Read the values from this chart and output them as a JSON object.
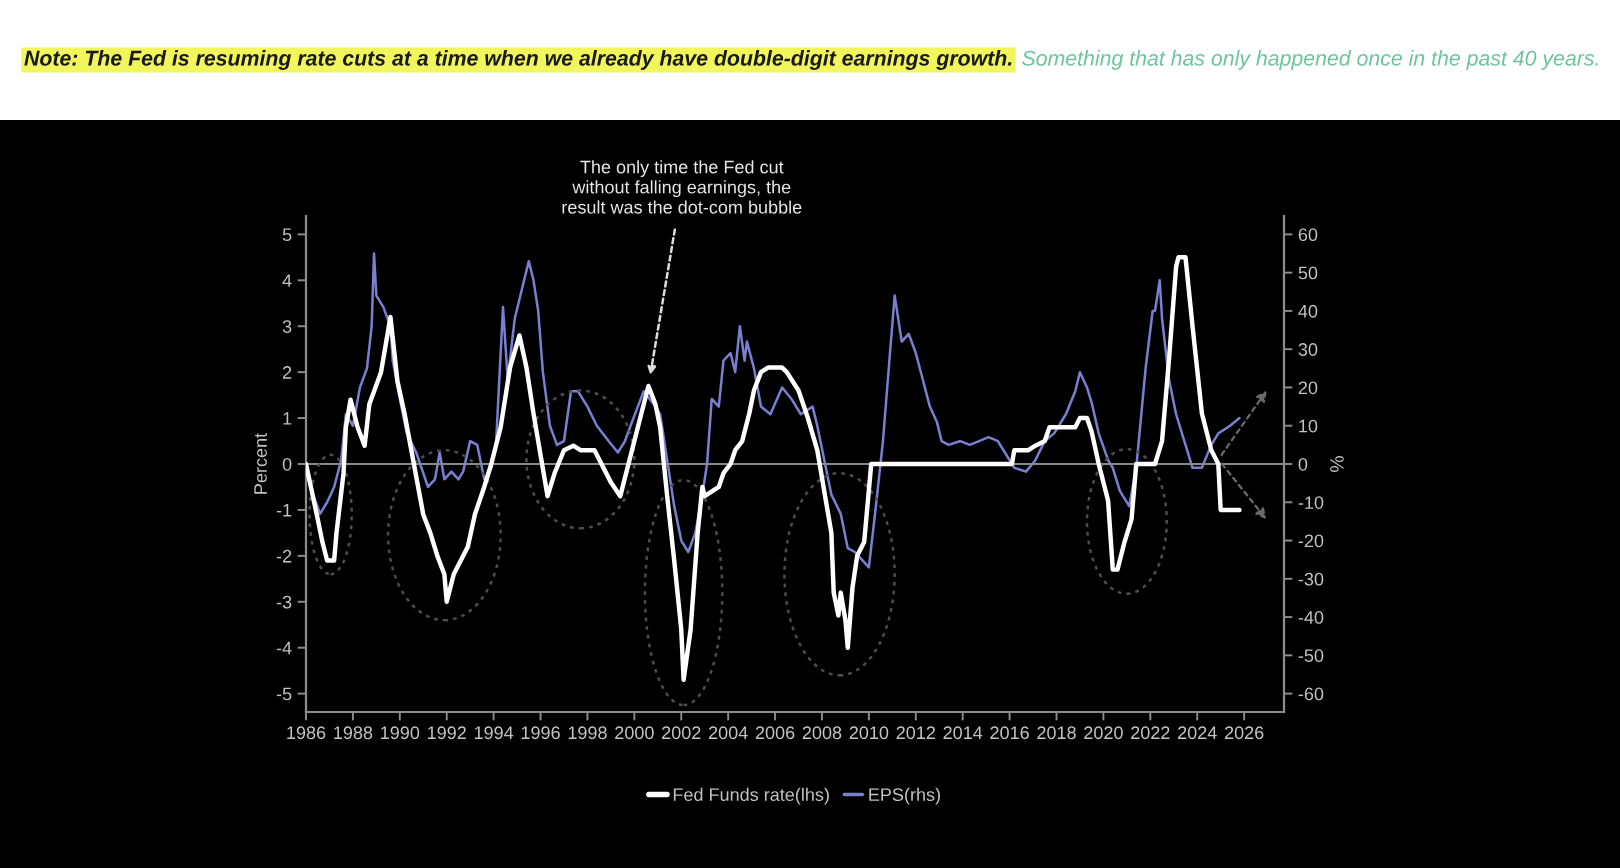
{
  "chart_data": {
    "type": "line",
    "title": "Note: The Fed is resuming rate cuts at a time when we already have double-digit earnings growth.",
    "subtitle": "Something that has only happened once in the past 40 years.",
    "ylabel": "Percent",
    "y2label": "%",
    "annotations": [
      {
        "text": "The only time the Fed cut\nwithout falling earnings, the\nresult was the dot-com bubble",
        "x": 2000.6,
        "y": 1.7
      }
    ],
    "series": [
      {
        "name": "Fed Funds rate(lhs)",
        "color": "#ffffff",
        "x": [
          1986.0,
          1986.5,
          1986.7,
          1986.9,
          1987.2,
          1987.3,
          1987.6,
          1987.7,
          1987.9,
          1988.2,
          1988.5,
          1988.7,
          1989.2,
          1989.5,
          1989.6,
          1989.9,
          1990.2,
          1990.6,
          1991.0,
          1991.3,
          1991.6,
          1991.9,
          1992.0,
          1992.3,
          1992.6,
          1992.9,
          1993.2,
          1993.6,
          1993.9,
          1994.3,
          1994.7,
          1995.1,
          1995.4,
          1995.7,
          1996.0,
          1996.3,
          1996.6,
          1997.0,
          1997.4,
          1997.7,
          1998.3,
          1998.6,
          1999.0,
          1999.4,
          1999.9,
          2000.3,
          2000.6,
          2000.9,
          2001.1,
          2001.4,
          2001.7,
          2002.0,
          2002.1,
          2002.4,
          2002.7,
          2002.9,
          2003.0,
          2003.6,
          2003.8,
          2004.1,
          2004.3,
          2004.6,
          2004.9,
          2005.1,
          2005.4,
          2005.7,
          2006.3,
          2006.5,
          2007.0,
          2007.4,
          2007.8,
          2008.2,
          2008.4,
          2008.5,
          2008.7,
          2008.8,
          2009.0,
          2009.1,
          2009.3,
          2009.5,
          2009.8,
          2010.1,
          2016.1,
          2016.2,
          2016.8,
          2017.1,
          2017.5,
          2017.7,
          2018.8,
          2019.0,
          2019.3,
          2019.5,
          2019.8,
          2020.2,
          2020.4,
          2020.6,
          2020.9,
          2021.2,
          2021.4,
          2022.2,
          2022.5,
          2022.8,
          2023.1,
          2023.2,
          2023.5,
          2023.8,
          2024.2,
          2024.6,
          2024.9,
          2025.0,
          2025.8
        ],
        "values": [
          0,
          -1.2,
          -1.7,
          -2.1,
          -2.1,
          -1.5,
          -0.2,
          0.8,
          1.4,
          0.8,
          0.4,
          1.3,
          2.0,
          2.9,
          3.2,
          1.8,
          1.1,
          0,
          -1.1,
          -1.5,
          -2.0,
          -2.4,
          -3.0,
          -2.4,
          -2.1,
          -1.8,
          -1.1,
          -0.5,
          0,
          0.8,
          2.1,
          2.8,
          2.1,
          1.1,
          0.2,
          -0.7,
          -0.2,
          0.3,
          0.4,
          0.3,
          0.3,
          0,
          -0.4,
          -0.7,
          0.3,
          1.1,
          1.7,
          1.3,
          0.8,
          -0.7,
          -2.1,
          -3.6,
          -4.7,
          -3.6,
          -1.5,
          -0.5,
          -0.7,
          -0.5,
          -0.2,
          0,
          0.3,
          0.5,
          1.1,
          1.6,
          2.0,
          2.1,
          2.1,
          2.0,
          1.6,
          1.0,
          0.3,
          -0.9,
          -1.5,
          -2.8,
          -3.3,
          -2.8,
          -3.4,
          -4.0,
          -2.7,
          -2.0,
          -1.7,
          0,
          0,
          0.3,
          0.3,
          0.4,
          0.5,
          0.8,
          0.8,
          1.0,
          1.0,
          0.7,
          0,
          -0.8,
          -2.3,
          -2.3,
          -1.7,
          -1.2,
          0,
          0,
          0.5,
          2.3,
          4.3,
          4.5,
          4.5,
          3.0,
          1.1,
          0.3,
          0,
          -1.0,
          -1.0
        ]
      },
      {
        "name": "EPS(rhs)",
        "color": "#7a7fd0",
        "axis": "y2",
        "x": [
          1986.0,
          1986.3,
          1986.6,
          1986.9,
          1987.2,
          1987.5,
          1987.7,
          1988.0,
          1988.3,
          1988.6,
          1988.8,
          1988.9,
          1989.0,
          1989.3,
          1989.6,
          1989.7,
          1990.0,
          1990.3,
          1990.7,
          1991.2,
          1991.5,
          1991.7,
          1991.9,
          1992.2,
          1992.5,
          1992.7,
          1993.0,
          1993.3,
          1993.6,
          1993.9,
          1994.1,
          1994.4,
          1994.6,
          1994.9,
          1995.3,
          1995.5,
          1995.7,
          1995.9,
          1996.1,
          1996.4,
          1996.7,
          1997.0,
          1997.3,
          1997.6,
          1998.0,
          1998.4,
          1998.9,
          1999.3,
          1999.6,
          1999.9,
          2000.4,
          2000.9,
          2001.1,
          2001.4,
          2001.7,
          2002.0,
          2002.3,
          2002.6,
          2002.9,
          2003.1,
          2003.3,
          2003.6,
          2003.8,
          2004.1,
          2004.3,
          2004.5,
          2004.7,
          2004.8,
          2005.1,
          2005.4,
          2005.8,
          2006.3,
          2006.7,
          2007.1,
          2007.6,
          2007.8,
          2008.1,
          2008.4,
          2008.8,
          2009.1,
          2009.4,
          2009.7,
          2010.0,
          2010.3,
          2010.6,
          2010.9,
          2011.1,
          2011.4,
          2011.7,
          2012.0,
          2012.3,
          2012.6,
          2012.9,
          2013.1,
          2013.4,
          2013.9,
          2014.3,
          2014.7,
          2015.1,
          2015.5,
          2015.8,
          2016.2,
          2016.7,
          2017.1,
          2017.5,
          2017.9,
          2018.4,
          2018.8,
          2019.0,
          2019.3,
          2019.5,
          2019.8,
          2020.2,
          2020.4,
          2020.7,
          2021.1,
          2021.4,
          2021.8,
          2022.1,
          2022.2,
          2022.4,
          2022.5,
          2022.8,
          2023.1,
          2023.5,
          2023.8,
          2024.2,
          2024.6,
          2024.9,
          2025.4,
          2025.8
        ],
        "values": [
          -2,
          -8,
          -13,
          -10,
          -6,
          1,
          13,
          10,
          20,
          25,
          36,
          55,
          44,
          41,
          36,
          27,
          17,
          8,
          3,
          -6,
          -4,
          3,
          -4,
          -2,
          -4,
          -2,
          6,
          5,
          -4,
          -1,
          5,
          41,
          22,
          38,
          48,
          53,
          48,
          40,
          24,
          10,
          5,
          6,
          19,
          19,
          15,
          10,
          6,
          3,
          6,
          11,
          19,
          15,
          13,
          1,
          -11,
          -20,
          -23,
          -18,
          -8,
          0,
          17,
          15,
          27,
          29,
          24,
          36,
          27,
          32,
          25,
          15,
          13,
          20,
          17,
          13,
          15,
          10,
          1,
          -8,
          -13,
          -22,
          -23,
          -25,
          -27,
          -11,
          6,
          29,
          44,
          32,
          34,
          29,
          22,
          15,
          11,
          6,
          5,
          6,
          5,
          6,
          7,
          6,
          3,
          -1,
          -2,
          1,
          6,
          8,
          13,
          19,
          24,
          20,
          16,
          8,
          1,
          -1,
          -7,
          -11,
          -1,
          25,
          40,
          40,
          48,
          38,
          22,
          13,
          5,
          -1,
          -1,
          5,
          8,
          10,
          12
        ]
      }
    ],
    "xlim": [
      1986,
      2027.7
    ],
    "xticks": [
      1986,
      1988,
      1990,
      1992,
      1994,
      1996,
      1998,
      2000,
      2002,
      2004,
      2006,
      2008,
      2010,
      2012,
      2014,
      2016,
      2018,
      2020,
      2022,
      2024,
      2026
    ],
    "ylim": [
      -5.4,
      5.4
    ],
    "yticks": [
      -5,
      -4,
      -3,
      -2,
      -1,
      0,
      1,
      2,
      3,
      4,
      5
    ],
    "y2lim": [
      -64.8,
      64.8
    ],
    "y2ticks": [
      -60,
      -50,
      -40,
      -30,
      -20,
      -10,
      0,
      10,
      20,
      30,
      40,
      50,
      60
    ],
    "ref_lines": [
      {
        "axis": "y",
        "value": 0,
        "color": "#8a8a8a"
      }
    ],
    "grid": false,
    "legend": "bottom"
  }
}
